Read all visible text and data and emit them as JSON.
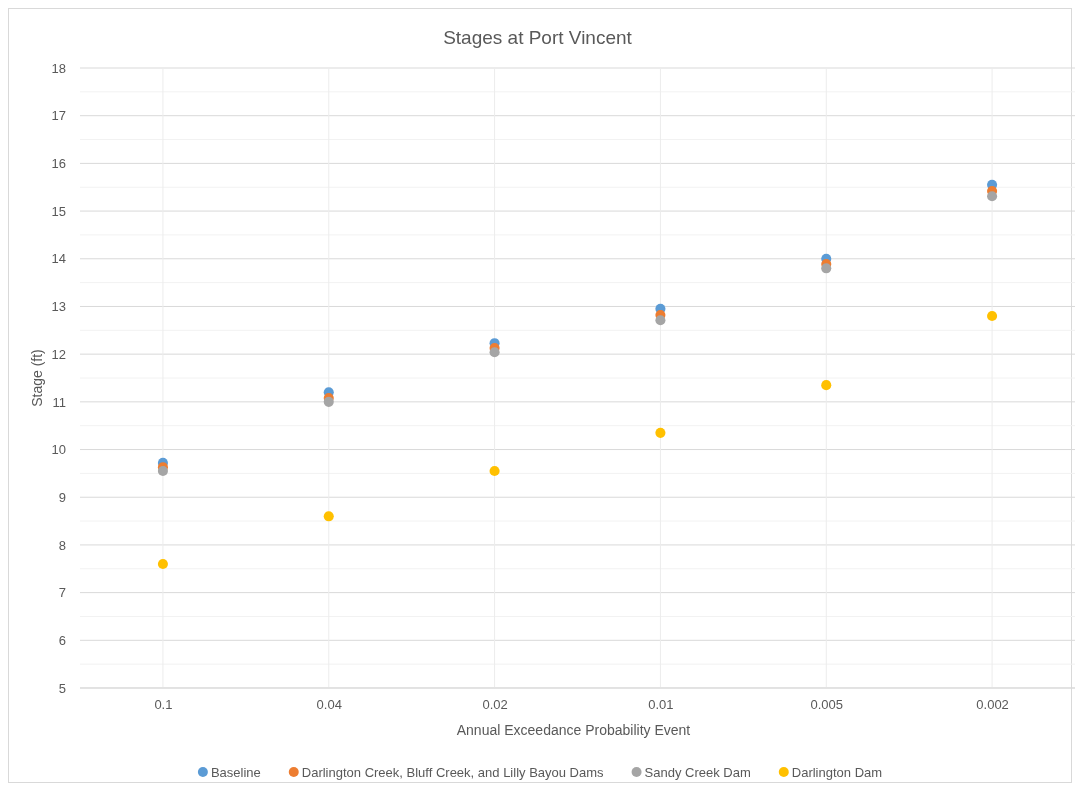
{
  "chart_data": {
    "type": "scatter",
    "title": "Stages at Port Vincent",
    "xlabel": "Annual Exceedance Probability Event",
    "ylabel": "Stage (ft)",
    "categories": [
      "0.1",
      "0.04",
      "0.02",
      "0.01",
      "0.005",
      "0.002"
    ],
    "series": [
      {
        "name": "Baseline",
        "color": "#5b9bd5",
        "values": [
          9.72,
          11.2,
          12.23,
          12.95,
          14.0,
          15.55
        ]
      },
      {
        "name": "Darlington Creek, Bluff Creek, and Lilly Bayou Dams",
        "color": "#ed7d31",
        "values": [
          9.63,
          11.08,
          12.13,
          12.82,
          13.89,
          15.42
        ]
      },
      {
        "name": "Sandy Creek Dam",
        "color": "#a5a5a5",
        "values": [
          9.55,
          11.0,
          12.04,
          12.71,
          13.8,
          15.31
        ]
      },
      {
        "name": "Darlington Dam",
        "color": "#ffc000",
        "values": [
          7.6,
          8.6,
          9.55,
          10.35,
          11.35,
          12.8
        ]
      }
    ],
    "ylim": [
      5,
      18
    ],
    "yticks": [
      5,
      {
        "value": 5.5,
        "label": null
      },
      6,
      {
        "value": 6.5,
        "label": null
      },
      7,
      {
        "value": 7.5,
        "label": null
      },
      8,
      {
        "value": 8.5,
        "label": null
      },
      9,
      {
        "value": 9.5,
        "label": null
      },
      10,
      {
        "value": 10.5,
        "label": null
      },
      11,
      {
        "value": 11.5,
        "label": null
      },
      12,
      {
        "value": 12.5,
        "label": null
      },
      13,
      {
        "value": 13.5,
        "label": null
      },
      14,
      {
        "value": 14.5,
        "label": null
      },
      15,
      {
        "value": 15.5,
        "label": null
      },
      16,
      {
        "value": 16.5,
        "label": null
      },
      17,
      {
        "value": 17.5,
        "label": null
      },
      18
    ],
    "grid": true,
    "legend": "bottom",
    "marker": "circle"
  }
}
